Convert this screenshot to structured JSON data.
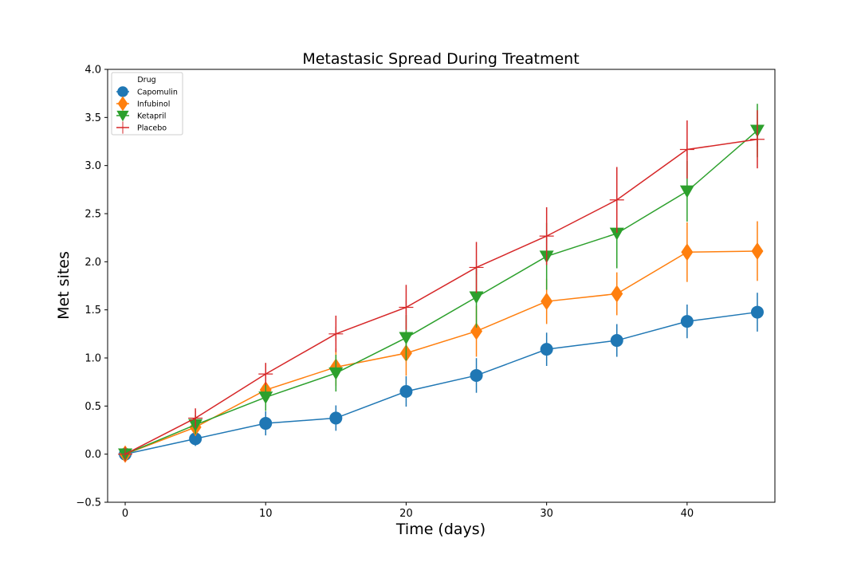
{
  "chart_data": {
    "type": "line",
    "title": "Metastasic Spread During Treatment",
    "xlabel": "Time (days)",
    "ylabel": "Met sites",
    "xlim": [
      -1.25,
      46.25
    ],
    "ylim": [
      -0.5,
      4.0
    ],
    "x_ticks": [
      0,
      10,
      20,
      30,
      40
    ],
    "x_tick_labels": [
      "0",
      "10",
      "20",
      "30",
      "40"
    ],
    "y_ticks": [
      -0.5,
      0.0,
      0.5,
      1.0,
      1.5,
      2.0,
      2.5,
      3.0,
      3.5,
      4.0
    ],
    "y_tick_labels": [
      "−0.5",
      "0.0",
      "0.5",
      "1.0",
      "1.5",
      "2.0",
      "2.5",
      "3.0",
      "3.5",
      "4.0"
    ],
    "grid": false,
    "legend": {
      "title": "Drug",
      "placement": "top-left"
    },
    "x": [
      0,
      5,
      10,
      15,
      20,
      25,
      30,
      35,
      40,
      45
    ],
    "series": [
      {
        "name": "Capomulin",
        "color": "#1f77b4",
        "marker": "circle",
        "values": [
          0.0,
          0.16,
          0.32,
          0.375,
          0.652,
          0.818,
          1.09,
          1.182,
          1.38,
          1.476
        ],
        "errors": [
          0.0,
          0.075,
          0.125,
          0.132,
          0.158,
          0.18,
          0.173,
          0.17,
          0.175,
          0.202
        ]
      },
      {
        "name": "Infubinol",
        "color": "#ff7f0e",
        "marker": "diamond",
        "values": [
          0.0,
          0.28,
          0.667,
          0.905,
          1.05,
          1.278,
          1.588,
          1.667,
          2.1,
          2.111
        ],
        "errors": [
          0.0,
          0.091,
          0.159,
          0.194,
          0.235,
          0.265,
          0.235,
          0.223,
          0.31,
          0.31
        ]
      },
      {
        "name": "Ketapril",
        "color": "#2ca02c",
        "marker": "triangle-down",
        "values": [
          0.0,
          0.305,
          0.591,
          0.842,
          1.21,
          1.632,
          2.056,
          2.294,
          2.733,
          3.364
        ],
        "errors": [
          0.0,
          0.098,
          0.142,
          0.191,
          0.237,
          0.316,
          0.348,
          0.362,
          0.316,
          0.278
        ]
      },
      {
        "name": "Placebo",
        "color": "#d62728",
        "marker": "plus",
        "values": [
          0.0,
          0.375,
          0.833,
          1.25,
          1.526,
          1.941,
          2.267,
          2.643,
          3.167,
          3.273
        ],
        "errors": [
          0.0,
          0.101,
          0.116,
          0.19,
          0.234,
          0.265,
          0.3,
          0.342,
          0.302,
          0.302
        ]
      }
    ]
  }
}
